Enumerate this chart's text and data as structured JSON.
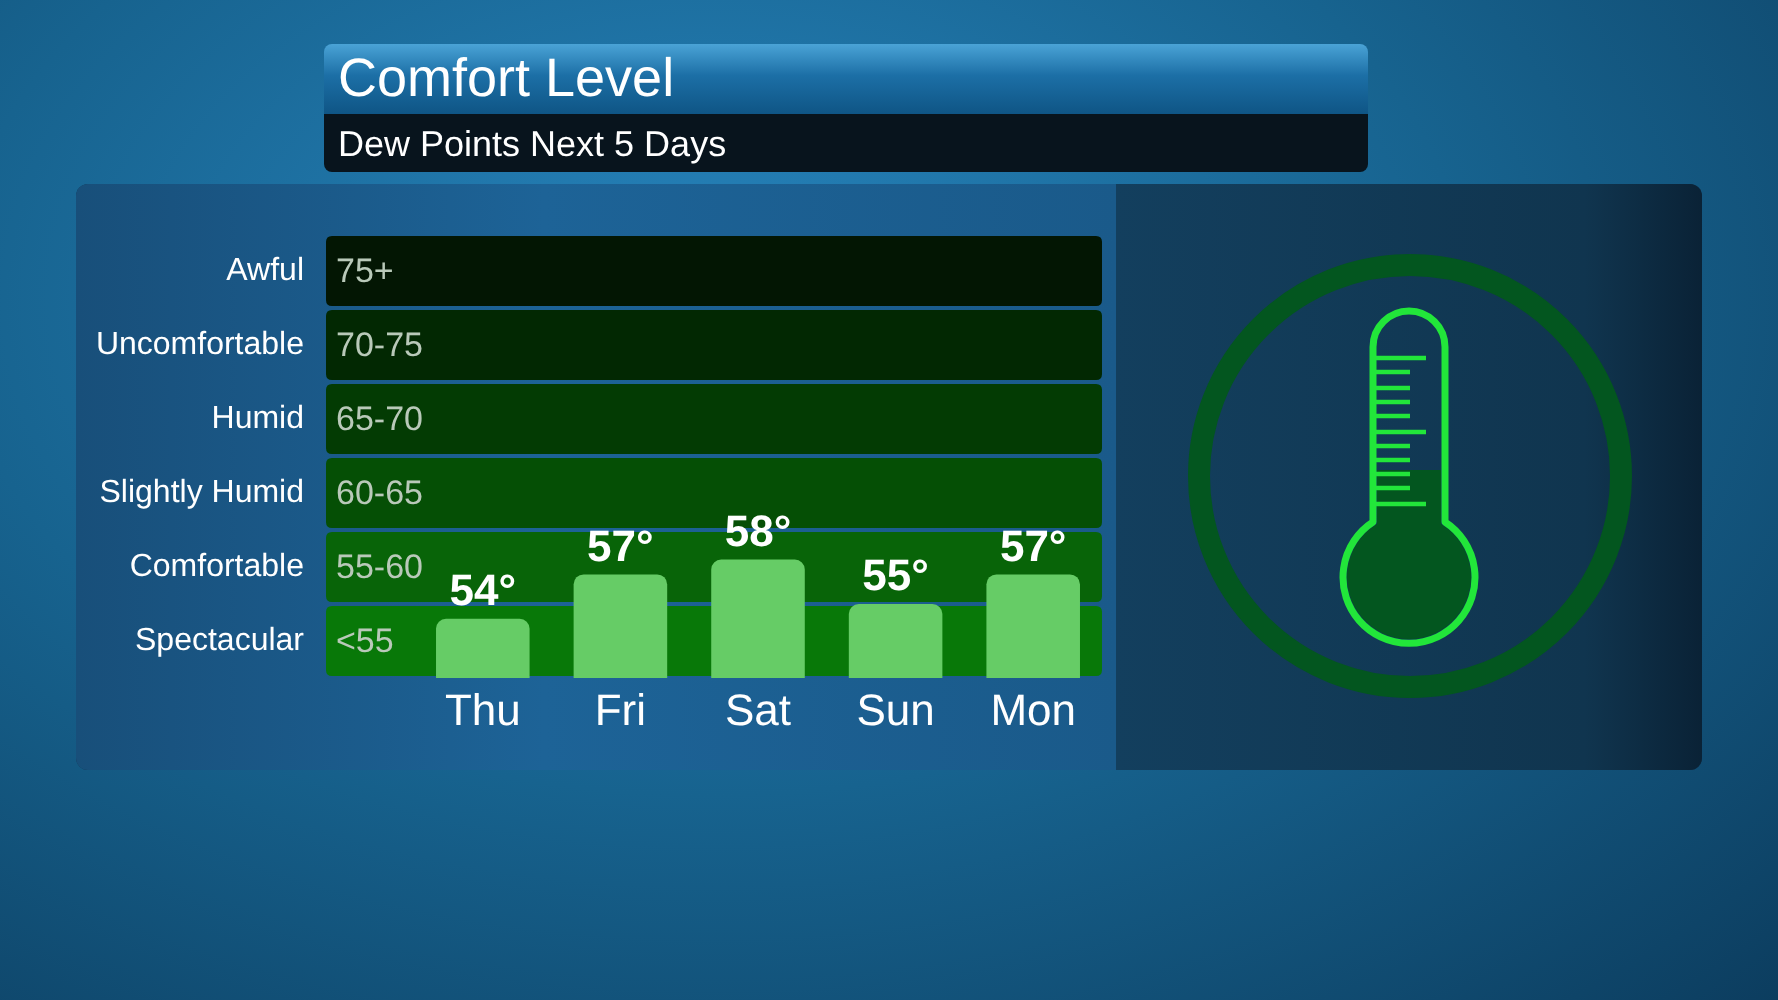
{
  "chart_data": {
    "type": "bar",
    "title": "Comfort Level",
    "subtitle": "Dew Points Next 5 Days",
    "categories": [
      "Thu",
      "Fri",
      "Sat",
      "Sun",
      "Mon"
    ],
    "values": [
      54,
      57,
      58,
      55,
      57
    ],
    "color": "#66cc66",
    "value_labels": [
      "54°",
      "57°",
      "58°",
      "55°",
      "57°"
    ],
    "ylim": [
      50,
      80
    ],
    "bands": [
      {
        "axis": "y",
        "from": 50,
        "to": 55,
        "label": "Spectacular",
        "color": "#087808"
      },
      {
        "axis": "y",
        "from": 55,
        "to": 60,
        "label": "Comfortable",
        "color": "#086408"
      },
      {
        "axis": "y",
        "from": 60,
        "to": 65,
        "label": "Slightly Humid",
        "color": "#054f05"
      },
      {
        "axis": "y",
        "from": 65,
        "to": 70,
        "label": "Humid",
        "color": "#033b03"
      },
      {
        "axis": "y",
        "from": 70,
        "to": 75,
        "label": "Uncomfortable",
        "color": "#022802"
      },
      {
        "axis": "y",
        "from": 75,
        "to": 80,
        "label": "Awful",
        "color": "#031603"
      }
    ],
    "annotations": [
      "<55",
      "55-60",
      "60-65",
      "65-70",
      "70-75",
      "75+"
    ]
  }
}
